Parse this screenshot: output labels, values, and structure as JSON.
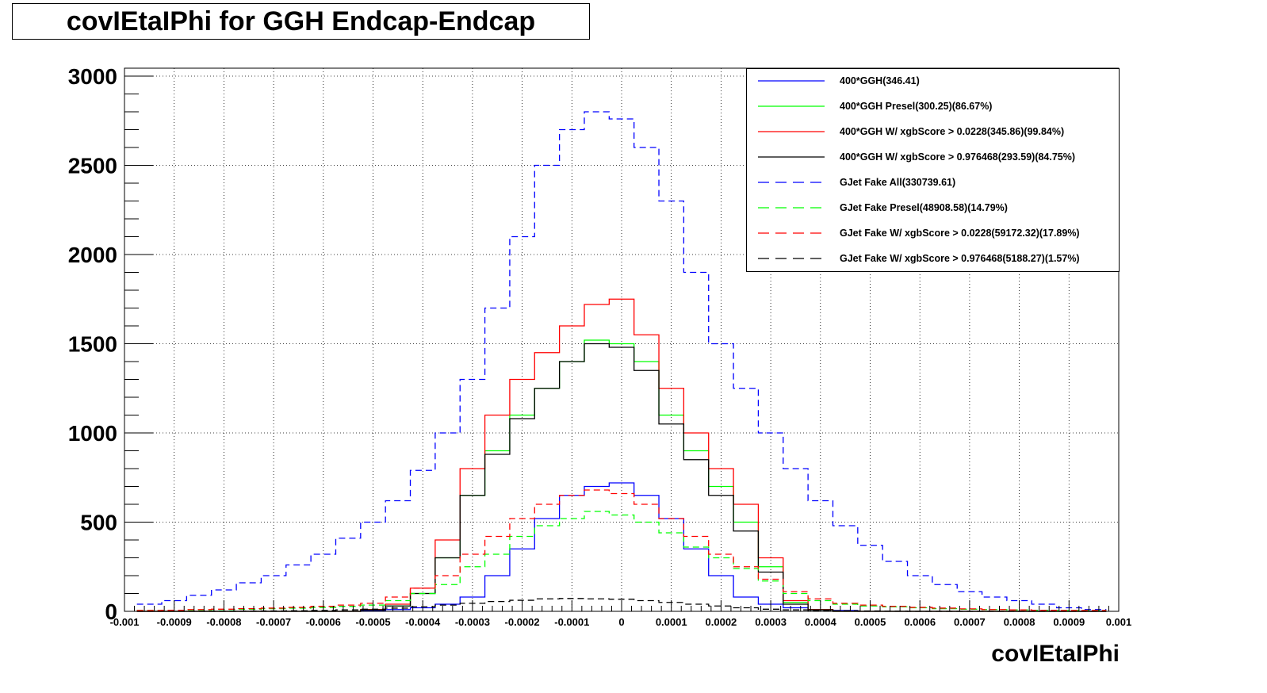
{
  "title": "covIEtaIPhi for GGH Endcap-Endcap",
  "chart_data": {
    "type": "line",
    "xlabel": "covIEtaIPhi",
    "ylabel": "",
    "xlim": [
      -0.001,
      0.001
    ],
    "ylim": [
      0,
      3000
    ],
    "grid": true,
    "legend_position": "top-right",
    "x_ticks": [
      "-0.001",
      "-0.0009",
      "-0.0008",
      "-0.0007",
      "-0.0006",
      "-0.0005",
      "-0.0004",
      "-0.0003",
      "-0.0002",
      "-0.0001",
      "0",
      "0.0001",
      "0.0002",
      "0.0003",
      "0.0004",
      "0.0005",
      "0.0006",
      "0.0007",
      "0.0008",
      "0.0009",
      "0.001"
    ],
    "y_ticks": [
      "0",
      "500",
      "1000",
      "1500",
      "2000",
      "2500",
      "3000"
    ],
    "x": [
      -0.00095,
      -0.0009,
      -0.00085,
      -0.0008,
      -0.00075,
      -0.0007,
      -0.00065,
      -0.0006,
      -0.00055,
      -0.0005,
      -0.00045,
      -0.0004,
      -0.00035,
      -0.0003,
      -0.00025,
      -0.0002,
      -0.00015,
      -0.0001,
      -5e-05,
      0,
      5e-05,
      0.0001,
      0.00015,
      0.0002,
      0.00025,
      0.0003,
      0.00035,
      0.0004,
      0.00045,
      0.0005,
      0.00055,
      0.0006,
      0.00065,
      0.0007,
      0.00075,
      0.0008,
      0.00085,
      0.0009,
      0.00095
    ],
    "series": [
      {
        "name": "400*GGH(346.41)",
        "color": "#0000ff",
        "dash": "solid",
        "values": [
          0,
          0,
          0,
          0,
          0,
          0,
          0,
          0,
          0,
          5,
          10,
          20,
          40,
          80,
          200,
          350,
          520,
          650,
          700,
          720,
          650,
          520,
          350,
          200,
          80,
          40,
          20,
          10,
          5,
          0,
          0,
          0,
          0,
          0,
          0,
          0,
          0,
          0,
          0
        ]
      },
      {
        "name": "400*GGH Presel(300.25)(86.67%)",
        "color": "#00ff00",
        "dash": "solid",
        "values": [
          0,
          0,
          0,
          0,
          0,
          0,
          0,
          0,
          0,
          10,
          30,
          100,
          300,
          650,
          900,
          1100,
          1250,
          1400,
          1520,
          1500,
          1400,
          1100,
          900,
          700,
          500,
          250,
          50,
          10,
          0,
          0,
          0,
          0,
          0,
          0,
          0,
          0,
          0,
          0,
          0
        ]
      },
      {
        "name": "400*GGH W/ xgbScore > 0.0228(345.86)(99.84%)",
        "color": "#ff0000",
        "dash": "solid",
        "values": [
          0,
          0,
          0,
          0,
          0,
          0,
          0,
          0,
          0,
          10,
          40,
          130,
          400,
          800,
          1100,
          1300,
          1450,
          1600,
          1720,
          1750,
          1550,
          1250,
          1000,
          800,
          600,
          300,
          60,
          10,
          0,
          0,
          0,
          0,
          0,
          0,
          0,
          0,
          0,
          0,
          0
        ]
      },
      {
        "name": "400*GGH W/ xgbScore > 0.976468(293.59)(84.75%)",
        "color": "#000000",
        "dash": "solid",
        "values": [
          0,
          0,
          0,
          0,
          0,
          0,
          0,
          0,
          0,
          8,
          30,
          100,
          300,
          650,
          880,
          1080,
          1250,
          1400,
          1500,
          1480,
          1350,
          1050,
          850,
          650,
          450,
          220,
          40,
          8,
          0,
          0,
          0,
          0,
          0,
          0,
          0,
          0,
          0,
          0,
          0
        ]
      },
      {
        "name": "GJet Fake All(330739.61)",
        "color": "#0000ff",
        "dash": "dashed",
        "values": [
          40,
          60,
          90,
          120,
          160,
          200,
          260,
          320,
          410,
          500,
          620,
          790,
          1000,
          1300,
          1700,
          2100,
          2500,
          2700,
          2800,
          2760,
          2600,
          2300,
          1900,
          1500,
          1250,
          1000,
          800,
          620,
          480,
          370,
          280,
          200,
          150,
          110,
          80,
          60,
          40,
          20,
          10
        ]
      },
      {
        "name": "GJet Fake Presel(48908.58)(14.79%)",
        "color": "#00ff00",
        "dash": "dashed",
        "values": [
          5,
          5,
          8,
          10,
          12,
          15,
          18,
          22,
          28,
          35,
          60,
          100,
          150,
          250,
          320,
          420,
          480,
          520,
          560,
          540,
          500,
          440,
          360,
          300,
          240,
          170,
          100,
          60,
          40,
          30,
          25,
          20,
          15,
          12,
          10,
          8,
          6,
          5,
          5
        ]
      },
      {
        "name": "GJet Fake W/ xgbScore > 0.0228(59172.32)(17.89%)",
        "color": "#ff0000",
        "dash": "dashed",
        "values": [
          5,
          6,
          10,
          12,
          15,
          18,
          22,
          28,
          35,
          45,
          80,
          130,
          200,
          320,
          420,
          520,
          600,
          650,
          680,
          660,
          600,
          520,
          420,
          320,
          250,
          180,
          110,
          70,
          45,
          35,
          28,
          22,
          18,
          14,
          10,
          8,
          6,
          5,
          5
        ]
      },
      {
        "name": "GJet Fake W/ xgbScore > 0.976468(5188.27)(1.57%)",
        "color": "#000000",
        "dash": "dashed",
        "values": [
          0,
          0,
          0,
          0,
          1,
          2,
          3,
          5,
          8,
          12,
          18,
          25,
          35,
          45,
          55,
          62,
          70,
          72,
          70,
          68,
          60,
          50,
          40,
          30,
          20,
          12,
          8,
          5,
          3,
          2,
          1,
          0,
          0,
          0,
          0,
          0,
          0,
          0,
          0
        ]
      }
    ]
  }
}
